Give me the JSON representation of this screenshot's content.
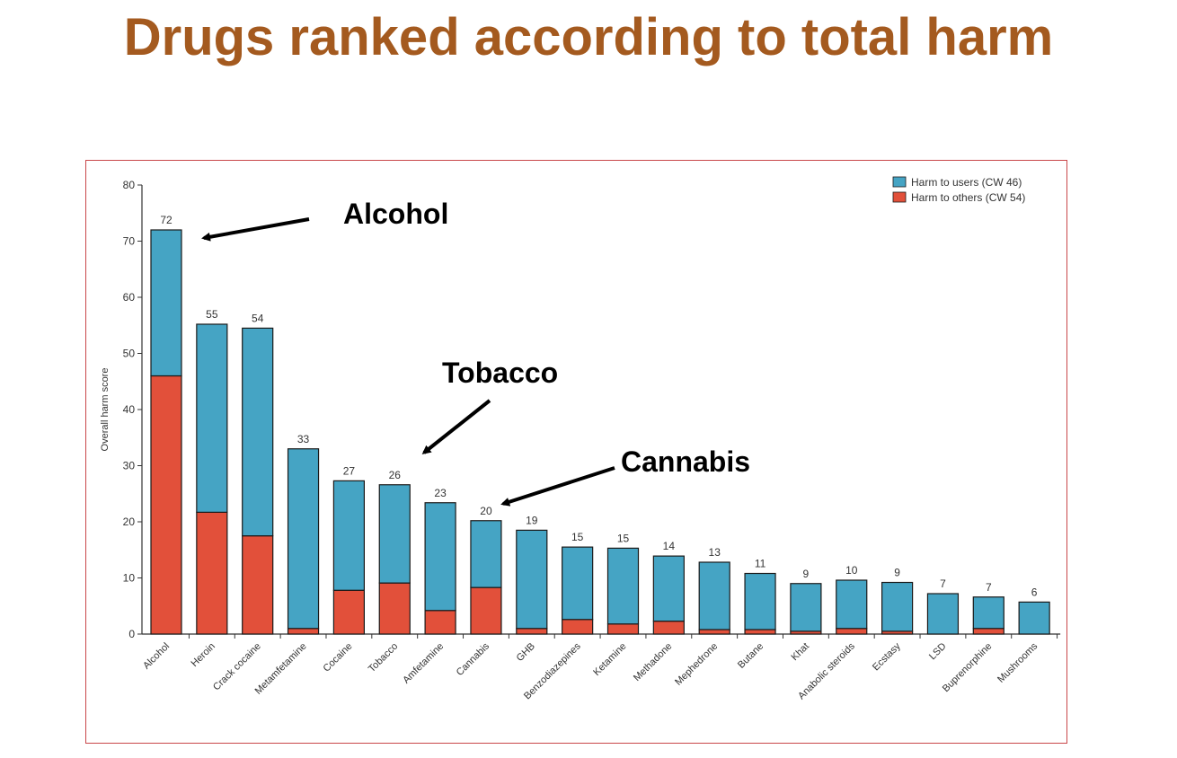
{
  "slide": {
    "title": "Drugs ranked according to total harm"
  },
  "annotations": {
    "alcohol": "Alcohol",
    "tobacco": "Tobacco",
    "cannabis": "Cannabis"
  },
  "colors": {
    "title": "#a45a1f",
    "users": "#45a4c4",
    "others": "#e2503a",
    "frame": "#c9474a"
  },
  "chart_data": {
    "type": "bar",
    "stacked": true,
    "title": "",
    "xlabel": "",
    "ylabel": "Overall harm score",
    "ylim": [
      0,
      80
    ],
    "yticks": [
      0,
      10,
      20,
      30,
      40,
      50,
      60,
      70,
      80
    ],
    "grid": false,
    "legend_position": "top-right",
    "categories": [
      "Alcohol",
      "Heroin",
      "Crack cocaine",
      "Metamfetamine",
      "Cocaine",
      "Tobacco",
      "Amfetamine",
      "Cannabis",
      "GHB",
      "Benzodiazepines",
      "Ketamine",
      "Methadone",
      "Mephedrone",
      "Butane",
      "Khat",
      "Anabolic steroids",
      "Ecstasy",
      "LSD",
      "Buprenorphine",
      "Mushrooms"
    ],
    "totals_labels": [
      "72",
      "55",
      "54",
      "33",
      "27",
      "26",
      "23",
      "20",
      "19",
      "15",
      "15",
      "14",
      "13",
      "11",
      "9",
      "10",
      "9",
      "7",
      "7",
      "6"
    ],
    "series": [
      {
        "name": "Harm to users (CW 46)",
        "color": "#45a4c4",
        "values": [
          26,
          33.5,
          37,
          32,
          19.5,
          17.5,
          19.2,
          11.9,
          17.5,
          12.9,
          13.5,
          11.6,
          12,
          10,
          8.5,
          8.6,
          8.7,
          7.2,
          5.6,
          5.7
        ]
      },
      {
        "name": "Harm to others (CW 54)",
        "color": "#e2503a",
        "values": [
          46,
          21.7,
          17.5,
          1,
          7.8,
          9.1,
          4.2,
          8.3,
          1,
          2.6,
          1.8,
          2.3,
          0.8,
          0.8,
          0.5,
          1,
          0.5,
          0,
          1,
          0
        ]
      }
    ]
  }
}
